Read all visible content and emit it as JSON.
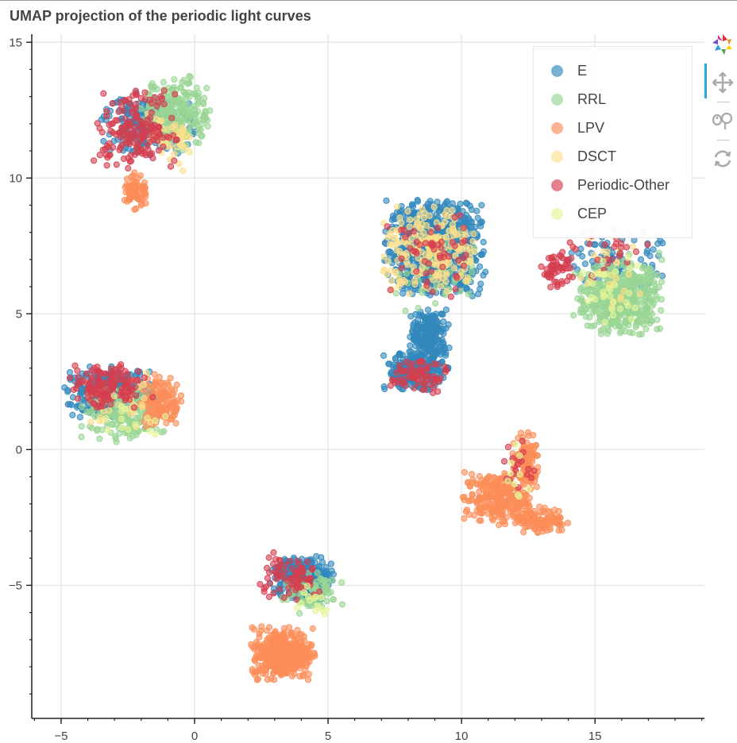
{
  "chart_data": {
    "type": "scatter",
    "title": "UMAP projection of the periodic light curves",
    "xlabel": "",
    "ylabel": "",
    "xlim": [
      -6.1,
      19.1
    ],
    "ylim": [
      -9.9,
      15.3
    ],
    "x_ticks": [
      -5,
      0,
      5,
      10,
      15
    ],
    "x_tick_labels": [
      "−5",
      "0",
      "5",
      "10",
      "15"
    ],
    "y_ticks": [
      -5,
      0,
      5,
      10,
      15
    ],
    "y_tick_labels": [
      "−5",
      "0",
      "5",
      "10",
      "15"
    ],
    "grid": true,
    "legend_position": "top-right",
    "series": [
      {
        "name": "E",
        "color": "#3288bd",
        "clusters": [
          {
            "x": 9.0,
            "y": 7.4,
            "sx": 1.15,
            "sy": 1.1,
            "n": 900
          },
          {
            "x": 8.8,
            "y": 4.2,
            "sx": 0.45,
            "sy": 0.6,
            "n": 220
          },
          {
            "x": 8.3,
            "y": 2.9,
            "sx": 0.75,
            "sy": 0.45,
            "n": 260
          },
          {
            "x": -1.8,
            "y": 12.0,
            "sx": 1.1,
            "sy": 0.7,
            "n": 200
          },
          {
            "x": -3.2,
            "y": 2.1,
            "sx": 1.05,
            "sy": 0.6,
            "n": 260
          },
          {
            "x": 4.0,
            "y": -4.7,
            "sx": 0.75,
            "sy": 0.55,
            "n": 280
          },
          {
            "x": 15.8,
            "y": 7.0,
            "sx": 1.1,
            "sy": 0.7,
            "n": 90
          }
        ]
      },
      {
        "name": "RRL",
        "color": "#99d594",
        "clusters": [
          {
            "x": 15.9,
            "y": 5.6,
            "sx": 1.05,
            "sy": 0.85,
            "n": 500
          },
          {
            "x": -0.7,
            "y": 12.4,
            "sx": 0.8,
            "sy": 0.85,
            "n": 260
          },
          {
            "x": -2.6,
            "y": 1.3,
            "sx": 1.0,
            "sy": 0.65,
            "n": 180
          },
          {
            "x": 4.4,
            "y": -5.3,
            "sx": 0.7,
            "sy": 0.5,
            "n": 80
          },
          {
            "x": 9.0,
            "y": 6.5,
            "sx": 1.0,
            "sy": 1.0,
            "n": 60
          }
        ]
      },
      {
        "name": "LPV",
        "color": "#fc8d59",
        "clusters": [
          {
            "x": 3.3,
            "y": -7.5,
            "sx": 0.75,
            "sy": 0.6,
            "n": 420
          },
          {
            "x": 11.3,
            "y": -1.8,
            "sx": 0.8,
            "sy": 0.6,
            "n": 240
          },
          {
            "x": 12.4,
            "y": -0.5,
            "sx": 0.35,
            "sy": 0.7,
            "n": 120
          },
          {
            "x": 13.0,
            "y": -2.6,
            "sx": 0.6,
            "sy": 0.3,
            "n": 120
          },
          {
            "x": -1.3,
            "y": 1.8,
            "sx": 0.5,
            "sy": 0.6,
            "n": 140
          },
          {
            "x": -2.2,
            "y": 9.5,
            "sx": 0.3,
            "sy": 0.45,
            "n": 70
          }
        ]
      },
      {
        "name": "DSCT",
        "color": "#fee08b",
        "clusters": [
          {
            "x": 8.9,
            "y": 7.3,
            "sx": 1.2,
            "sy": 1.05,
            "n": 220
          },
          {
            "x": -1.0,
            "y": 11.3,
            "sx": 0.8,
            "sy": 0.7,
            "n": 45
          },
          {
            "x": -2.8,
            "y": 1.8,
            "sx": 1.0,
            "sy": 0.7,
            "n": 35
          },
          {
            "x": 15.5,
            "y": 6.5,
            "sx": 0.9,
            "sy": 0.8,
            "n": 25
          }
        ]
      },
      {
        "name": "Periodic-Other",
        "color": "#d53e4f",
        "clusters": [
          {
            "x": -2.2,
            "y": 11.8,
            "sx": 1.0,
            "sy": 0.9,
            "n": 170
          },
          {
            "x": -3.3,
            "y": 2.3,
            "sx": 0.9,
            "sy": 0.55,
            "n": 150
          },
          {
            "x": 3.6,
            "y": -4.7,
            "sx": 0.8,
            "sy": 0.6,
            "n": 75
          },
          {
            "x": 8.4,
            "y": 2.7,
            "sx": 0.7,
            "sy": 0.45,
            "n": 70
          },
          {
            "x": 8.8,
            "y": 7.2,
            "sx": 1.0,
            "sy": 1.0,
            "n": 55
          },
          {
            "x": 13.6,
            "y": 6.6,
            "sx": 0.4,
            "sy": 0.45,
            "n": 55
          },
          {
            "x": 15.5,
            "y": 7.1,
            "sx": 0.9,
            "sy": 0.5,
            "n": 25
          },
          {
            "x": 12.1,
            "y": -0.8,
            "sx": 0.4,
            "sy": 0.7,
            "n": 18
          }
        ]
      },
      {
        "name": "CEP",
        "color": "#e6f598",
        "clusters": [
          {
            "x": 15.6,
            "y": 6.0,
            "sx": 0.9,
            "sy": 0.8,
            "n": 35
          },
          {
            "x": 4.5,
            "y": -5.5,
            "sx": 0.5,
            "sy": 0.4,
            "n": 15
          },
          {
            "x": -2.4,
            "y": 1.2,
            "sx": 0.9,
            "sy": 0.6,
            "n": 15
          },
          {
            "x": 12.2,
            "y": -0.8,
            "sx": 0.4,
            "sy": 0.7,
            "n": 10
          }
        ]
      }
    ]
  },
  "toolbar": {
    "tools": [
      {
        "icon": "bokeh-logo-icon"
      },
      {
        "icon": "pan-icon",
        "active": true
      },
      {
        "icon": "wheel-zoom-icon"
      },
      {
        "icon": "reset-icon"
      }
    ]
  }
}
